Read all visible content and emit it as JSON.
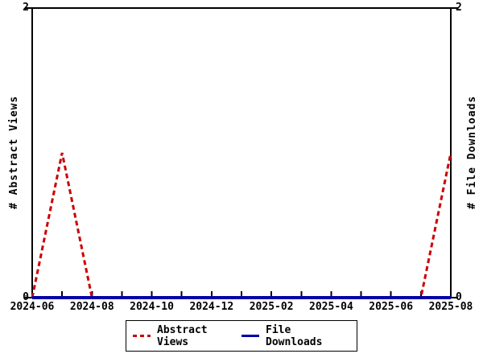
{
  "axes": {
    "left": {
      "title": "# Abstract Views",
      "top_label": "2",
      "bottom_label": "0"
    },
    "right": {
      "title": "# File Downloads",
      "top_label": "2",
      "bottom_label": "0"
    }
  },
  "chart_data": {
    "type": "line",
    "x": [
      "2024-06",
      "2024-07",
      "2024-08",
      "2024-09",
      "2024-10",
      "2024-11",
      "2024-12",
      "2025-01",
      "2025-02",
      "2025-03",
      "2025-04",
      "2025-05",
      "2025-06",
      "2025-07",
      "2025-08"
    ],
    "x_tick_labels": [
      "2024-06",
      "2024-08",
      "2024-10",
      "2024-12",
      "2025-02",
      "2025-04",
      "2025-06",
      "2025-08"
    ],
    "ylim": [
      0,
      2
    ],
    "ylabel_left": "# Abstract Views",
    "ylabel_right": "# File Downloads",
    "grid": false,
    "legend_position": "bottom-center",
    "series": [
      {
        "name": "Abstract Views",
        "axis": "left",
        "color": "#cc0000",
        "style": "dashed",
        "values": [
          0,
          1,
          0,
          0,
          0,
          0,
          0,
          0,
          0,
          0,
          0,
          0,
          0,
          0,
          1
        ]
      },
      {
        "name": "File Downloads",
        "axis": "right",
        "color": "#0000aa",
        "style": "solid",
        "values": [
          0,
          0,
          0,
          0,
          0,
          0,
          0,
          0,
          0,
          0,
          0,
          0,
          0,
          0,
          0
        ]
      }
    ]
  },
  "legend": {
    "items": [
      {
        "label": "Abstract Views",
        "color": "#cc0000",
        "style": "dashed"
      },
      {
        "label": "File Downloads",
        "color": "#0000aa",
        "style": "solid"
      }
    ]
  },
  "colors": {
    "axis": "#000000",
    "background": "#ffffff",
    "text": "#000000"
  }
}
